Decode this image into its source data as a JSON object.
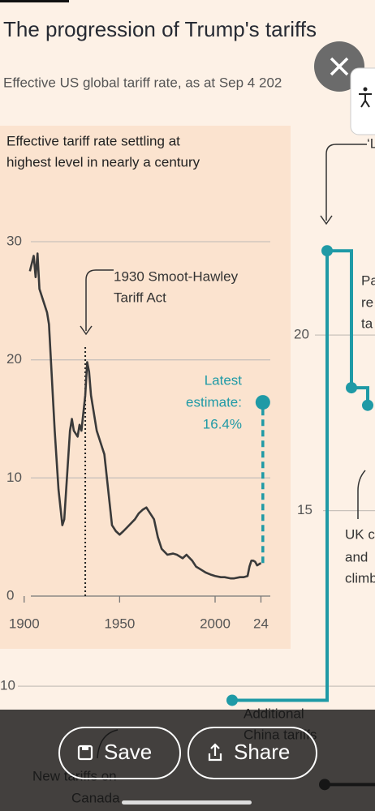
{
  "header": {
    "title": "The progression of Trump's tariffs",
    "subtitle": "Effective US global tariff rate, as at Sep 4 202"
  },
  "chart_data": [
    {
      "type": "line",
      "title": [
        "Effective tariff rate settling at",
        "highest level in nearly a century"
      ],
      "series": [
        {
          "color": "#3a3a3a",
          "x": [
            1903,
            1905,
            1906,
            1907,
            1908,
            1910,
            1912,
            1913,
            1914,
            1916,
            1918,
            1920,
            1921,
            1922,
            1924,
            1925,
            1926,
            1928,
            1929,
            1930,
            1932,
            1933,
            1934,
            1935,
            1936,
            1938,
            1940,
            1942,
            1944,
            1946,
            1948,
            1950,
            1952,
            1955,
            1958,
            1960,
            1962,
            1964,
            1966,
            1968,
            1970,
            1972,
            1975,
            1978,
            1980,
            1983,
            1985,
            1988,
            1990,
            1993,
            1995,
            1998,
            2000,
            2003,
            2005,
            2008,
            2010,
            2013,
            2015,
            2017,
            2018,
            2019,
            2020,
            2021,
            2022,
            2024
          ],
          "values": [
            27.5,
            28.8,
            27,
            29,
            26,
            25,
            24,
            23,
            20,
            14,
            9,
            6,
            6.5,
            9,
            14,
            15,
            14,
            13.5,
            14.5,
            14,
            17,
            19.8,
            19,
            17,
            16,
            14,
            13,
            12,
            9,
            6,
            5.5,
            5.2,
            5.5,
            6,
            6.5,
            7,
            7.3,
            7.5,
            7,
            6.5,
            5,
            4,
            3.5,
            3.6,
            3.5,
            3.2,
            3.5,
            3,
            2.5,
            2.2,
            2,
            1.8,
            1.7,
            1.6,
            1.6,
            1.5,
            1.5,
            1.6,
            1.6,
            1.7,
            2.5,
            3,
            3,
            2.9,
            2.6,
            2.8
          ]
        },
        {
          "color": "#1f9aa6",
          "dashed": true,
          "marker": "end",
          "x": [
            2025,
            2025
          ],
          "values": [
            2.8,
            16.4
          ]
        }
      ],
      "xlim": [
        1895,
        2034
      ],
      "xticks": [
        1900,
        1950,
        2000,
        {
          "value": 2024,
          "label": "24"
        }
      ],
      "ylim": [
        0,
        30
      ],
      "yticks": [
        0,
        10,
        20,
        30
      ],
      "grid": true,
      "annotations": [
        {
          "lines": [
            "1930 Smoot-Hawley",
            "Tariff Act"
          ],
          "x": 1932
        },
        {
          "lines": [
            "Latest",
            "estimate:",
            "16.4%"
          ],
          "color": "#1f9aa6"
        }
      ]
    },
    {
      "type": "step",
      "series": [
        {
          "color": "#1f9aa6",
          "x": [
            null,
            null,
            null,
            null
          ],
          "values": [
            9.6,
            22.4,
            18.5,
            18.0
          ]
        },
        {
          "color": "#222222",
          "x": [
            null,
            null
          ],
          "values": [
            7.2,
            7.2
          ]
        }
      ],
      "ylim": [
        6.4,
        25.8
      ],
      "yticks": [
        10,
        15,
        20
      ],
      "grid": true,
      "annotations": [
        "‘L",
        "Pa",
        "re",
        "ta",
        "UK c",
        "and",
        "climb",
        "Additional",
        "China tariffs",
        "New tariffs on",
        "Canada"
      ]
    }
  ],
  "buttons": {
    "save": "Save",
    "share": "Share"
  }
}
